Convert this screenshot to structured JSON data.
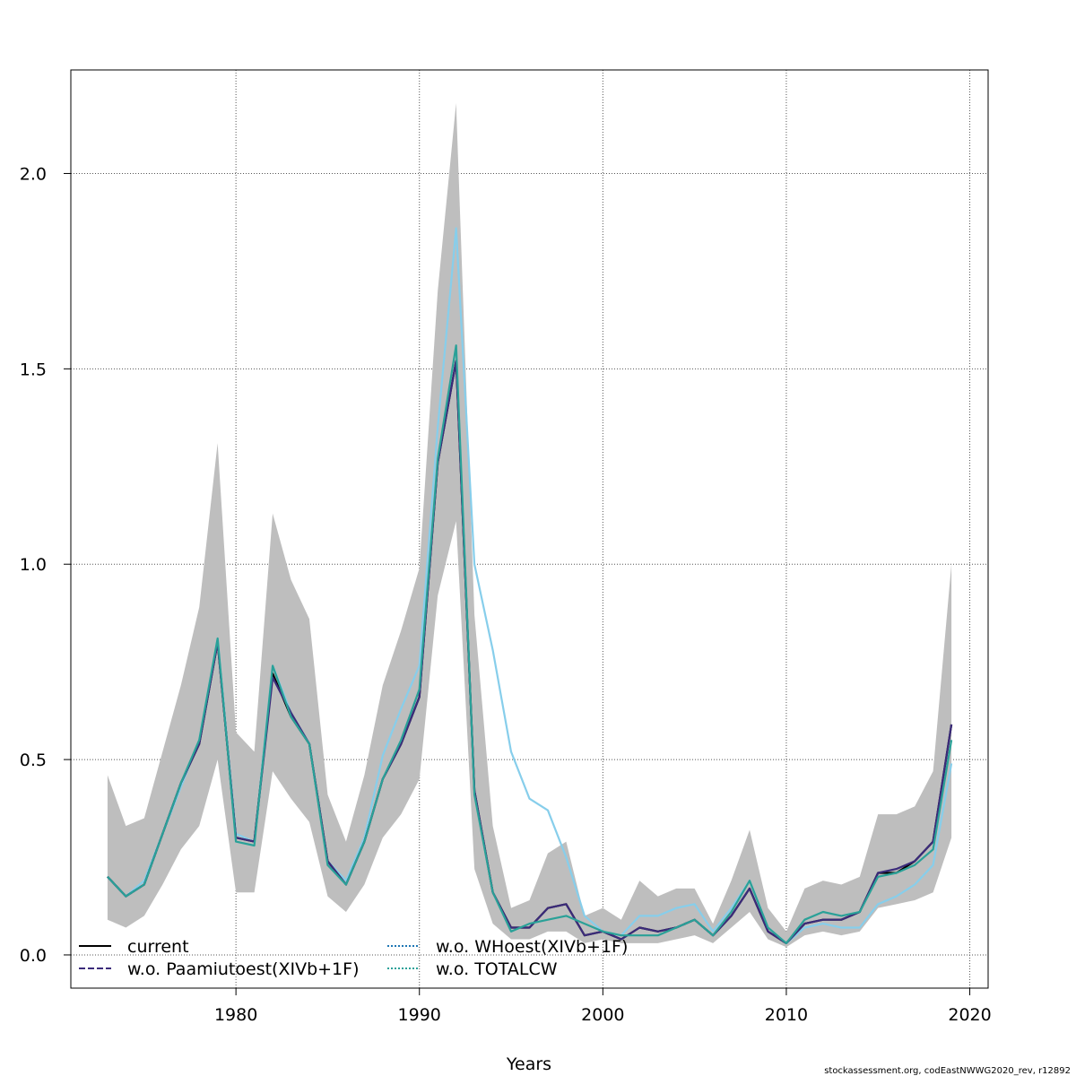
{
  "chart_data": {
    "type": "line",
    "xlabel": "Years",
    "ylabel": "",
    "xlim": [
      1971,
      2021
    ],
    "ylim": [
      -0.085,
      2.265
    ],
    "x_ticks": [
      1980,
      1990,
      2000,
      2010,
      2020
    ],
    "y_ticks": [
      0.0,
      0.5,
      1.0,
      1.5,
      2.0
    ],
    "x_tick_labels": [
      "1980",
      "1990",
      "2000",
      "2010",
      "2020"
    ],
    "y_tick_labels": [
      "0.0",
      "0.5",
      "1.0",
      "1.5",
      "2.0"
    ],
    "grid": true,
    "legend_position": "bottom-left",
    "footer": "stockassessment.org, codEastNWWG2020_rev, r12892",
    "x": [
      1973,
      1974,
      1975,
      1976,
      1977,
      1978,
      1979,
      1980,
      1981,
      1982,
      1983,
      1984,
      1985,
      1986,
      1987,
      1988,
      1989,
      1990,
      1991,
      1992,
      1993,
      1994,
      1995,
      1996,
      1997,
      1998,
      1999,
      2000,
      2001,
      2002,
      2003,
      2004,
      2005,
      2006,
      2007,
      2008,
      2009,
      2010,
      2011,
      2012,
      2013,
      2014,
      2015,
      2016,
      2017,
      2018,
      2019
    ],
    "band": {
      "color": "#bebebe",
      "lower": [
        0.09,
        0.07,
        0.1,
        0.18,
        0.27,
        0.33,
        0.5,
        0.16,
        0.16,
        0.47,
        0.4,
        0.34,
        0.15,
        0.11,
        0.18,
        0.3,
        0.36,
        0.45,
        0.92,
        1.11,
        0.22,
        0.08,
        0.04,
        0.04,
        0.06,
        0.06,
        0.03,
        0.04,
        0.03,
        0.03,
        0.03,
        0.04,
        0.05,
        0.03,
        0.07,
        0.11,
        0.04,
        0.02,
        0.05,
        0.06,
        0.05,
        0.06,
        0.12,
        0.13,
        0.14,
        0.16,
        0.3
      ],
      "upper": [
        0.46,
        0.33,
        0.35,
        0.52,
        0.69,
        0.89,
        1.31,
        0.57,
        0.52,
        1.13,
        0.96,
        0.86,
        0.41,
        0.29,
        0.46,
        0.69,
        0.83,
        0.99,
        1.7,
        2.18,
        0.87,
        0.33,
        0.12,
        0.14,
        0.26,
        0.29,
        0.1,
        0.12,
        0.09,
        0.19,
        0.15,
        0.17,
        0.17,
        0.08,
        0.19,
        0.32,
        0.12,
        0.06,
        0.17,
        0.19,
        0.18,
        0.2,
        0.36,
        0.36,
        0.38,
        0.47,
        1.0
      ]
    },
    "series": [
      {
        "name": "current",
        "color": "#000000",
        "dash": "",
        "values": [
          0.2,
          0.15,
          0.18,
          0.31,
          0.44,
          0.54,
          0.8,
          0.3,
          0.29,
          0.72,
          0.61,
          0.54,
          0.24,
          0.18,
          0.29,
          0.45,
          0.54,
          0.66,
          1.26,
          1.52,
          0.42,
          0.16,
          0.07,
          0.07,
          0.12,
          0.13,
          0.05,
          0.06,
          0.04,
          0.07,
          0.06,
          0.07,
          0.09,
          0.05,
          0.1,
          0.17,
          0.06,
          0.03,
          0.08,
          0.09,
          0.09,
          0.11,
          0.21,
          0.21,
          0.24,
          0.29,
          0.59
        ]
      },
      {
        "name": "w.o. Paamiutoest(XIVb+1F)",
        "color": "#3b2b7a",
        "dash": "",
        "values": [
          0.2,
          0.15,
          0.18,
          0.31,
          0.44,
          0.54,
          0.8,
          0.3,
          0.29,
          0.71,
          0.62,
          0.54,
          0.24,
          0.18,
          0.29,
          0.45,
          0.54,
          0.66,
          1.26,
          1.52,
          0.42,
          0.16,
          0.07,
          0.07,
          0.12,
          0.13,
          0.05,
          0.06,
          0.04,
          0.07,
          0.06,
          0.07,
          0.09,
          0.05,
          0.1,
          0.17,
          0.06,
          0.03,
          0.08,
          0.09,
          0.09,
          0.11,
          0.21,
          0.22,
          0.24,
          0.29,
          0.59
        ]
      },
      {
        "name": "w.o. WHoest(XIVb+1F)",
        "color": "#87ceeb",
        "dash": "",
        "values": [
          0.2,
          0.15,
          0.19,
          0.31,
          0.43,
          0.55,
          0.81,
          0.31,
          0.29,
          0.74,
          0.62,
          0.54,
          0.24,
          0.19,
          0.3,
          0.51,
          0.63,
          0.74,
          1.35,
          1.86,
          1.0,
          0.78,
          0.52,
          0.4,
          0.37,
          0.25,
          0.1,
          0.06,
          0.05,
          0.1,
          0.1,
          0.12,
          0.13,
          0.06,
          0.12,
          0.19,
          0.07,
          0.03,
          0.07,
          0.08,
          0.07,
          0.07,
          0.13,
          0.15,
          0.18,
          0.23,
          0.49
        ]
      },
      {
        "name": "w.o. TOTALCW",
        "color": "#2aa198",
        "dash": "",
        "values": [
          0.2,
          0.15,
          0.18,
          0.31,
          0.44,
          0.55,
          0.81,
          0.29,
          0.28,
          0.74,
          0.61,
          0.54,
          0.23,
          0.18,
          0.29,
          0.45,
          0.55,
          0.68,
          1.27,
          1.56,
          0.41,
          0.16,
          0.06,
          0.08,
          0.09,
          0.1,
          0.08,
          0.06,
          0.05,
          0.05,
          0.05,
          0.07,
          0.09,
          0.05,
          0.11,
          0.19,
          0.07,
          0.03,
          0.09,
          0.11,
          0.1,
          0.11,
          0.2,
          0.21,
          0.23,
          0.27,
          0.55
        ]
      }
    ],
    "legend": [
      {
        "name": "current",
        "color": "#000000",
        "dash": ""
      },
      {
        "name": "w.o. Paamiutoest(XIVb+1F)",
        "color": "#3b2b7a",
        "dash": "7,3"
      },
      {
        "name": "w.o. WHoest(XIVb+1F)",
        "color": "#1f77b4",
        "dash": "2,2"
      },
      {
        "name": "w.o. TOTALCW",
        "color": "#2aa198",
        "dash": "2,2"
      }
    ]
  }
}
